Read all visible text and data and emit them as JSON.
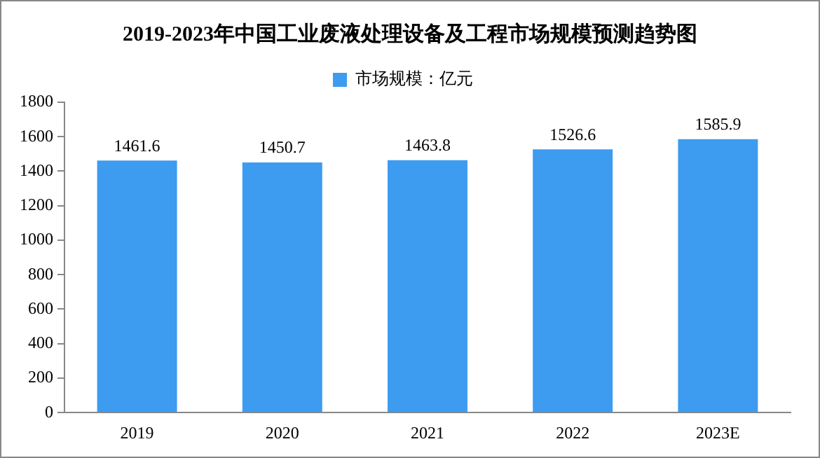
{
  "chart_data": {
    "type": "bar",
    "title": "2019-2023年中国工业废液处理设备及工程市场规模预测趋势图",
    "categories": [
      "2019",
      "2020",
      "2021",
      "2022",
      "2023E"
    ],
    "series": [
      {
        "name": "市场规模：亿元",
        "color": "#3d9bf0",
        "values": [
          1461.6,
          1450.7,
          1463.8,
          1526.6,
          1585.9
        ]
      }
    ],
    "ylim": [
      0,
      1800
    ],
    "yticks": [
      0,
      200,
      400,
      600,
      800,
      1000,
      1200,
      1400,
      1600,
      1800
    ],
    "grid": false,
    "legend": "top",
    "data_labels": true
  }
}
